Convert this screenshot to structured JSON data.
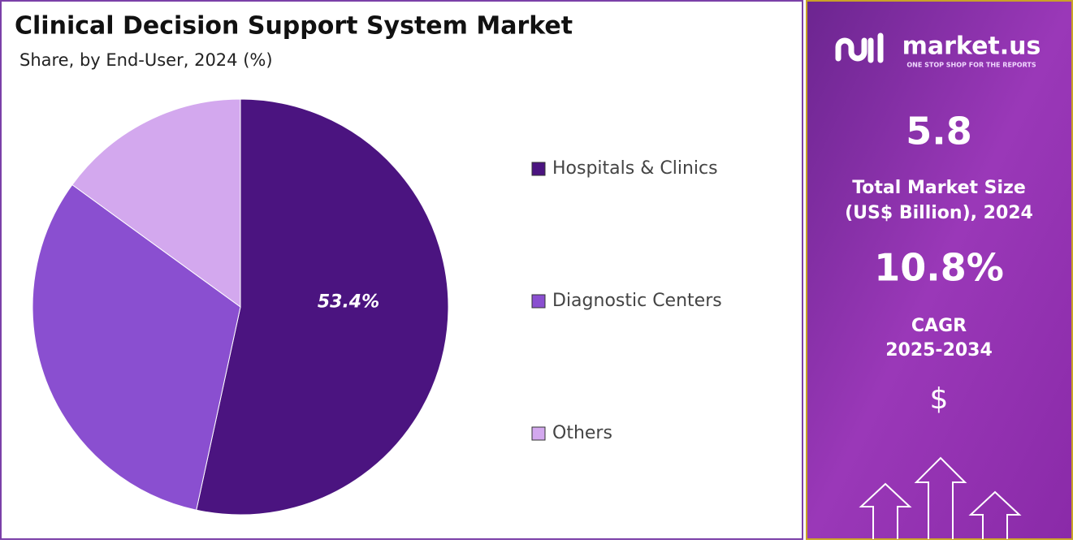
{
  "chart_data": {
    "type": "pie",
    "title": "Clinical Decision Support System Market",
    "subtitle": "Share, by End-User, 2024 (%)",
    "categories": [
      "Hospitals & Clinics",
      "Diagnostic Centers",
      "Others"
    ],
    "values": [
      53.4,
      31.6,
      15
    ],
    "value_labels": [
      "53.4%",
      null,
      null
    ],
    "colors": [
      "#4b1480",
      "#8a4fd0",
      "#d3a8ee"
    ],
    "legend": "right"
  },
  "side_panel": {
    "brand": "market.us",
    "tagline": "ONE STOP SHOP FOR THE REPORTS",
    "market_size": 5.8,
    "market_size_label_1": "Total Market Size",
    "market_size_label_2": "(US$ Billion), 2024",
    "cagr": "10.8%",
    "cagr_label": "CAGR",
    "cagr_period": "2025-2034",
    "currency": "$"
  }
}
